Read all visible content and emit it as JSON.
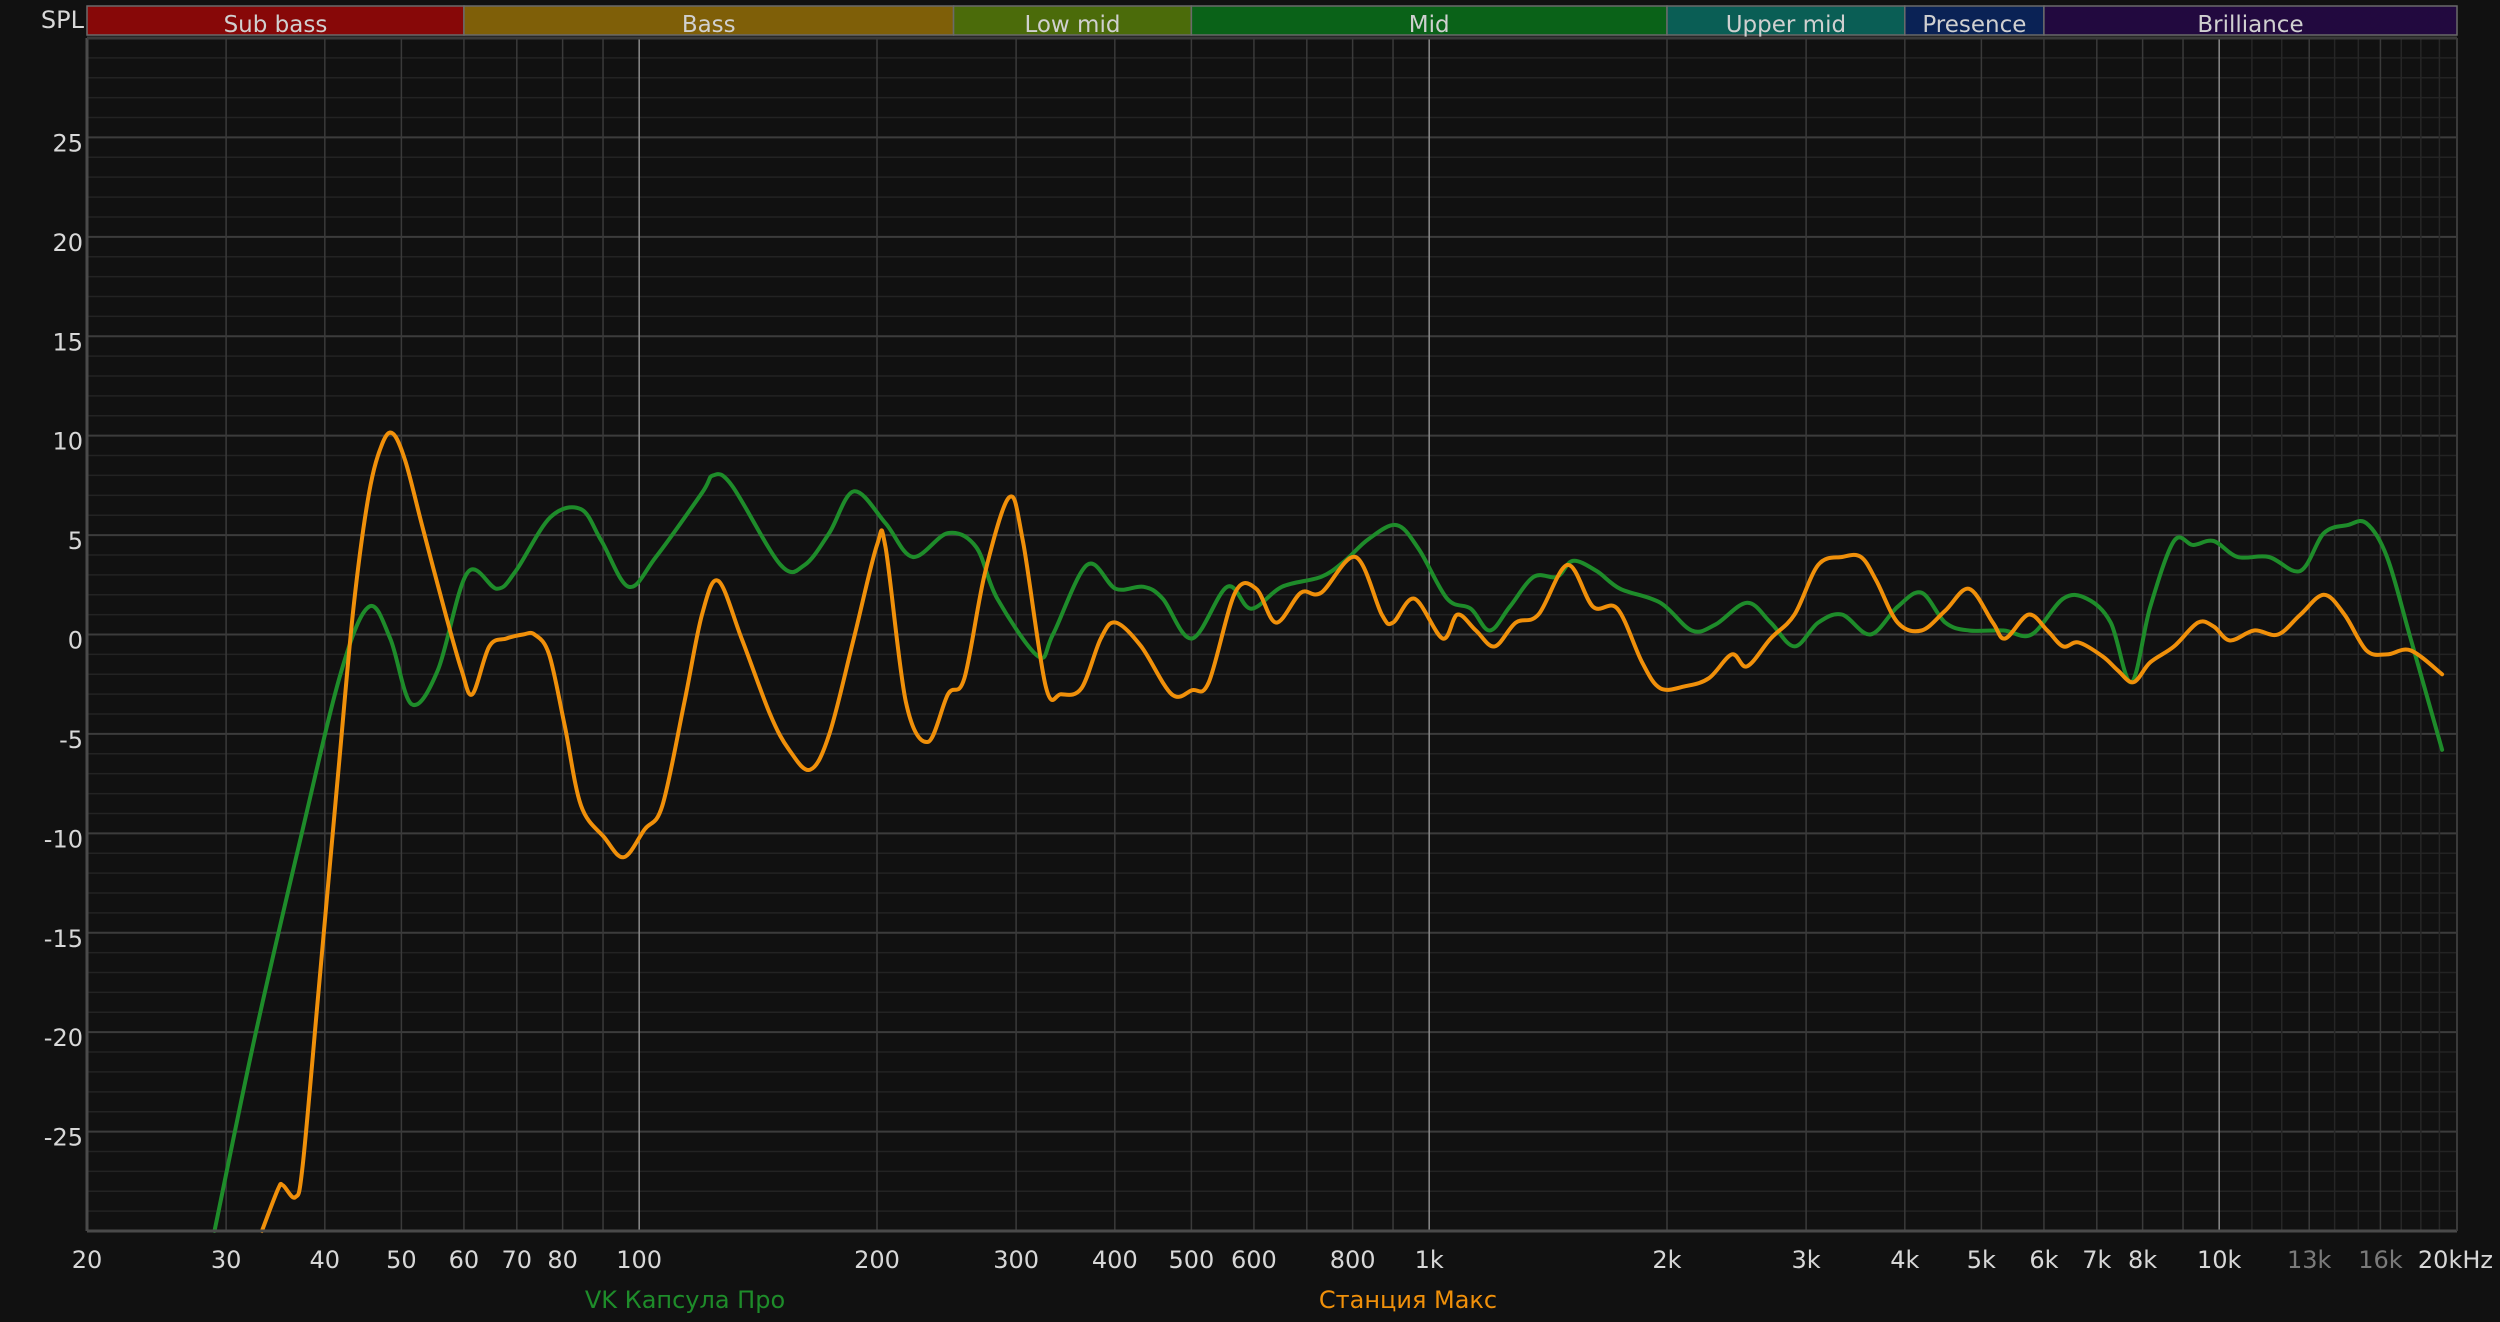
{
  "chart_data": {
    "type": "line",
    "ylabel": "SPL",
    "x_scale": "log",
    "xlim": [
      20,
      20000
    ],
    "ylim": [
      -30,
      30
    ],
    "grid": true,
    "legend_placement": "bottom",
    "y_ticks": [
      25,
      20,
      15,
      10,
      5,
      0,
      -5,
      -10,
      -15,
      -20,
      -25
    ],
    "x_ticks": [
      {
        "f": 20,
        "label": "20"
      },
      {
        "f": 30,
        "label": "30"
      },
      {
        "f": 40,
        "label": "40"
      },
      {
        "f": 50,
        "label": "50"
      },
      {
        "f": 60,
        "label": "60"
      },
      {
        "f": 70,
        "label": "70"
      },
      {
        "f": 80,
        "label": "80"
      },
      {
        "f": 100,
        "label": "100"
      },
      {
        "f": 200,
        "label": "200"
      },
      {
        "f": 300,
        "label": "300"
      },
      {
        "f": 400,
        "label": "400"
      },
      {
        "f": 500,
        "label": "500"
      },
      {
        "f": 600,
        "label": "600"
      },
      {
        "f": 800,
        "label": "800"
      },
      {
        "f": 1000,
        "label": "1k"
      },
      {
        "f": 2000,
        "label": "2k"
      },
      {
        "f": 3000,
        "label": "3k"
      },
      {
        "f": 4000,
        "label": "4k"
      },
      {
        "f": 5000,
        "label": "5k"
      },
      {
        "f": 6000,
        "label": "6k"
      },
      {
        "f": 7000,
        "label": "7k"
      },
      {
        "f": 8000,
        "label": "8k"
      },
      {
        "f": 10000,
        "label": "10k"
      },
      {
        "f": 13000,
        "label": "13k",
        "dim": true
      },
      {
        "f": 16000,
        "label": "16k",
        "dim": true
      },
      {
        "f": 20000,
        "label": "20kHz"
      }
    ],
    "bands": [
      {
        "label": "Sub bass",
        "from": 20,
        "to": 60,
        "color": "#870808"
      },
      {
        "label": "Bass",
        "from": 60,
        "to": 250,
        "color": "#7f5f08"
      },
      {
        "label": "Low mid",
        "from": 250,
        "to": 500,
        "color": "#4b6b0a"
      },
      {
        "label": "Mid",
        "from": 500,
        "to": 2000,
        "color": "#0a6218"
      },
      {
        "label": "Upper mid",
        "from": 2000,
        "to": 4000,
        "color": "#0a5e55"
      },
      {
        "label": "Presence",
        "from": 4000,
        "to": 6000,
        "color": "#0a2255"
      },
      {
        "label": "Brilliance",
        "from": 6000,
        "to": 20000,
        "color": "#22093f"
      }
    ],
    "series": [
      {
        "name": "VK Капсула Про",
        "color": "#1e8c2a",
        "points": [
          [
            29,
            -30
          ],
          [
            32.6,
            -20.3
          ],
          [
            37.5,
            -9.8
          ],
          [
            42,
            -1.8
          ],
          [
            45.5,
            1.4
          ],
          [
            48.4,
            -0.2
          ],
          [
            51.5,
            -3.5
          ],
          [
            55.6,
            -1.8
          ],
          [
            60.6,
            3.1
          ],
          [
            66.1,
            2.3
          ],
          [
            69.8,
            3.2
          ],
          [
            77.2,
            5.9
          ],
          [
            84.4,
            6.3
          ],
          [
            89.6,
            4.7
          ],
          [
            97,
            2.4
          ],
          [
            105,
            3.9
          ],
          [
            120,
            7.1
          ],
          [
            124,
            8.0
          ],
          [
            131,
            7.5
          ],
          [
            151,
            3.5
          ],
          [
            162,
            3.5
          ],
          [
            174,
            5.1
          ],
          [
            187,
            7.2
          ],
          [
            205,
            5.6
          ],
          [
            222,
            3.9
          ],
          [
            246,
            5.1
          ],
          [
            267,
            4.4
          ],
          [
            284,
            1.8
          ],
          [
            320,
            -1.1
          ],
          [
            334,
            0
          ],
          [
            369,
            3.5
          ],
          [
            401,
            2.3
          ],
          [
            435,
            2.4
          ],
          [
            460,
            1.8
          ],
          [
            501,
            -0.2
          ],
          [
            555,
            2.4
          ],
          [
            595,
            1.3
          ],
          [
            651,
            2.4
          ],
          [
            730,
            2.9
          ],
          [
            782,
            3.7
          ],
          [
            838,
            4.8
          ],
          [
            909,
            5.5
          ],
          [
            970,
            4.3
          ],
          [
            1054,
            1.8
          ],
          [
            1129,
            1.3
          ],
          [
            1193,
            0.2
          ],
          [
            1265,
            1.4
          ],
          [
            1356,
            2.9
          ],
          [
            1452,
            2.9
          ],
          [
            1520,
            3.7
          ],
          [
            1628,
            3.2
          ],
          [
            1745,
            2.3
          ],
          [
            1961,
            1.6
          ],
          [
            2149,
            0.2
          ],
          [
            2303,
            0.5
          ],
          [
            2526,
            1.6
          ],
          [
            2706,
            0.6
          ],
          [
            2900,
            -0.6
          ],
          [
            3108,
            0.6
          ],
          [
            3331,
            1.0
          ],
          [
            3618,
            0
          ],
          [
            3918,
            1.4
          ],
          [
            4199,
            2.1
          ],
          [
            4501,
            0.6
          ],
          [
            4824,
            0.2
          ],
          [
            5336,
            0.2
          ],
          [
            5788,
            0
          ],
          [
            6345,
            1.8
          ],
          [
            6801,
            1.8
          ],
          [
            7290,
            0.6
          ],
          [
            7740,
            -2.4
          ],
          [
            8180,
            1.4
          ],
          [
            8767,
            4.7
          ],
          [
            9268,
            4.5
          ],
          [
            9840,
            4.7
          ],
          [
            10550,
            3.9
          ],
          [
            11560,
            3.9
          ],
          [
            12670,
            3.2
          ],
          [
            13570,
            5.1
          ],
          [
            14540,
            5.5
          ],
          [
            15360,
            5.6
          ],
          [
            16310,
            3.9
          ],
          [
            17470,
            -0.2
          ],
          [
            19150,
            -5.8
          ]
        ]
      },
      {
        "name": "Станция Макс",
        "color": "#f0900a",
        "points": [
          [
            33.3,
            -30
          ],
          [
            34.9,
            -27.9
          ],
          [
            35.4,
            -27.7
          ],
          [
            36.7,
            -28.3
          ],
          [
            37.5,
            -26.7
          ],
          [
            39.3,
            -17.8
          ],
          [
            41.5,
            -7.4
          ],
          [
            43.5,
            1.4
          ],
          [
            45.5,
            7.1
          ],
          [
            47.3,
            9.6
          ],
          [
            48.8,
            10.1
          ],
          [
            50.6,
            8.7
          ],
          [
            53.1,
            5.5
          ],
          [
            56.9,
            1.0
          ],
          [
            59.6,
            -1.8
          ],
          [
            61.5,
            -3.0
          ],
          [
            64.6,
            -0.6
          ],
          [
            67.9,
            -0.2
          ],
          [
            71.3,
            0
          ],
          [
            73.7,
            0
          ],
          [
            76.9,
            -1.0
          ],
          [
            80.5,
            -4.6
          ],
          [
            84.4,
            -8.6
          ],
          [
            90.3,
            -10.2
          ],
          [
            95.6,
            -11.2
          ],
          [
            101.6,
            -9.8
          ],
          [
            107,
            -8.6
          ],
          [
            114.1,
            -3.4
          ],
          [
            120.1,
            1.0
          ],
          [
            125.9,
            2.7
          ],
          [
            134.8,
            -0.2
          ],
          [
            146.4,
            -4.0
          ],
          [
            154.8,
            -5.8
          ],
          [
            164.6,
            -6.8
          ],
          [
            174.1,
            -5.0
          ],
          [
            186.9,
            -0.2
          ],
          [
            200,
            4.5
          ],
          [
            205,
            4.4
          ],
          [
            217.6,
            -3.4
          ],
          [
            232,
            -5.4
          ],
          [
            246,
            -3.0
          ],
          [
            258,
            -2.2
          ],
          [
            274,
            3.1
          ],
          [
            294,
            6.9
          ],
          [
            306,
            4.7
          ],
          [
            327,
            -2.6
          ],
          [
            342,
            -3.0
          ],
          [
            363,
            -2.7
          ],
          [
            384,
            -0.2
          ],
          [
            401,
            0.6
          ],
          [
            432,
            -0.6
          ],
          [
            472,
            -3.0
          ],
          [
            501,
            -2.8
          ],
          [
            526,
            -2.4
          ],
          [
            568,
            2.1
          ],
          [
            604,
            2.3
          ],
          [
            640,
            0.6
          ],
          [
            688,
            2.1
          ],
          [
            730,
            2.1
          ],
          [
            807,
            3.9
          ],
          [
            871,
            1.0
          ],
          [
            900,
            0.6
          ],
          [
            958,
            1.8
          ],
          [
            1040,
            -0.2
          ],
          [
            1086,
            1.0
          ],
          [
            1146,
            0.2
          ],
          [
            1210,
            -0.6
          ],
          [
            1287,
            0.6
          ],
          [
            1375,
            1.0
          ],
          [
            1497,
            3.5
          ],
          [
            1612,
            1.4
          ],
          [
            1731,
            1.3
          ],
          [
            1860,
            -1.4
          ],
          [
            1961,
            -2.7
          ],
          [
            2110,
            -2.6
          ],
          [
            2260,
            -2.2
          ],
          [
            2416,
            -1.0
          ],
          [
            2526,
            -1.6
          ],
          [
            2706,
            -0.2
          ],
          [
            2900,
            1.0
          ],
          [
            3108,
            3.5
          ],
          [
            3331,
            3.9
          ],
          [
            3520,
            3.9
          ],
          [
            3682,
            2.7
          ],
          [
            3918,
            0.6
          ],
          [
            4199,
            0.2
          ],
          [
            4501,
            1.2
          ],
          [
            4824,
            2.3
          ],
          [
            5170,
            0.6
          ],
          [
            5360,
            -0.2
          ],
          [
            5737,
            1.0
          ],
          [
            6060,
            0.2
          ],
          [
            6345,
            -0.6
          ],
          [
            6640,
            -0.4
          ],
          [
            7120,
            -1.1
          ],
          [
            7440,
            -1.8
          ],
          [
            7790,
            -2.4
          ],
          [
            8180,
            -1.4
          ],
          [
            8767,
            -0.6
          ],
          [
            9400,
            0.6
          ],
          [
            9840,
            0.4
          ],
          [
            10320,
            -0.3
          ],
          [
            11070,
            0.2
          ],
          [
            11870,
            0
          ],
          [
            12670,
            1.0
          ],
          [
            13570,
            2.0
          ],
          [
            14410,
            1.0
          ],
          [
            15360,
            -0.8
          ],
          [
            16310,
            -1.0
          ],
          [
            17470,
            -0.8
          ],
          [
            19150,
            -2.0
          ]
        ]
      }
    ]
  }
}
